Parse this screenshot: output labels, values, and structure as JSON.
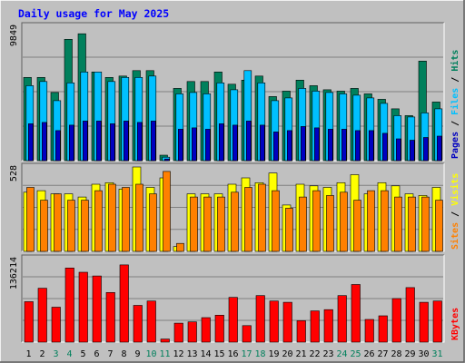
{
  "chart_data": {
    "type": "bar",
    "title": "Daily usage for May 2025",
    "categories": [
      "1",
      "2",
      "3",
      "4",
      "5",
      "6",
      "7",
      "8",
      "9",
      "10",
      "11",
      "12",
      "13",
      "14",
      "15",
      "16",
      "17",
      "18",
      "19",
      "20",
      "21",
      "22",
      "23",
      "24",
      "25",
      "26",
      "27",
      "28",
      "29",
      "30",
      "31"
    ],
    "weekend_days": [
      3,
      4,
      10,
      11,
      17,
      18,
      24,
      25,
      31
    ],
    "panels": [
      {
        "id": "top",
        "max_label": "9849",
        "ymax": 9849,
        "legend": [
          "Pages",
          "Files",
          "Hits"
        ],
        "series": [
          {
            "name": "Hits",
            "color": "#00805c",
            "values": [
              6100,
              6100,
              5000,
              8900,
              9300,
              6500,
              6100,
              6200,
              6600,
              6600,
              400,
              5300,
              5800,
              5800,
              6500,
              5600,
              5900,
              6200,
              4700,
              5100,
              5900,
              5500,
              5200,
              5100,
              5300,
              4900,
              4500,
              3800,
              3300,
              7300,
              4300
            ]
          },
          {
            "name": "Files",
            "color": "#00c0ff",
            "values": [
              5500,
              5800,
              4400,
              5700,
              6500,
              6500,
              5800,
              6100,
              6100,
              6200,
              250,
              4900,
              5000,
              4900,
              5700,
              5200,
              6600,
              5700,
              4400,
              4600,
              5300,
              5100,
              5000,
              4900,
              4800,
              4600,
              4200,
              3300,
              3200,
              3500,
              3800
            ]
          },
          {
            "name": "Pages",
            "color": "#0000c0",
            "values": [
              2700,
              2800,
              2200,
              2600,
              2900,
              2900,
              2700,
              2900,
              2800,
              2900,
              120,
              2300,
              2400,
              2300,
              2700,
              2600,
              2900,
              2600,
              2100,
              2200,
              2500,
              2400,
              2300,
              2300,
              2200,
              2200,
              2000,
              1600,
              1500,
              1700,
              1800
            ]
          }
        ]
      },
      {
        "id": "middle",
        "max_label": "528",
        "ymax": 528,
        "legend": [
          "Sites",
          "Visits"
        ],
        "series": [
          {
            "name": "Visits",
            "color": "#ffff00",
            "values": [
              370,
              380,
              360,
              360,
              340,
              420,
              430,
              390,
              528,
              400,
              460,
              30,
              360,
              360,
              360,
              420,
              460,
              430,
              490,
              290,
              420,
              410,
              400,
              430,
              480,
              360,
              430,
              410,
              360,
              350,
              400
            ]
          },
          {
            "name": "Sites",
            "color": "#ff8000",
            "values": [
              400,
              320,
              360,
              320,
              320,
              380,
              420,
              400,
              420,
              360,
              500,
              50,
              340,
              340,
              340,
              370,
              400,
              420,
              380,
              270,
              340,
              380,
              350,
              370,
              320,
              380,
              380,
              340,
              340,
              340,
              320
            ]
          }
        ]
      },
      {
        "id": "bottom",
        "max_label": "136214",
        "ymax": 136214,
        "legend": [
          "KBytes"
        ],
        "series": [
          {
            "name": "KBytes",
            "color": "#ff0000",
            "values": [
              66000,
              88000,
              57000,
              121000,
              114000,
              108000,
              81000,
              126000,
              60000,
              67000,
              5000,
              31000,
              33000,
              40000,
              44000,
              73000,
              27000,
              76000,
              67000,
              65000,
              35000,
              51000,
              53000,
              76000,
              94000,
              37000,
              43000,
              71000,
              89000,
              65000,
              67000
            ]
          }
        ]
      }
    ],
    "colors": {
      "background": "#c0c0c0",
      "frame": "#ffffff",
      "grid": "#808080",
      "title": "#0000ff",
      "weekend_label": "#00805c",
      "weekday_label": "#000000",
      "legend_separator": "#000000"
    }
  }
}
